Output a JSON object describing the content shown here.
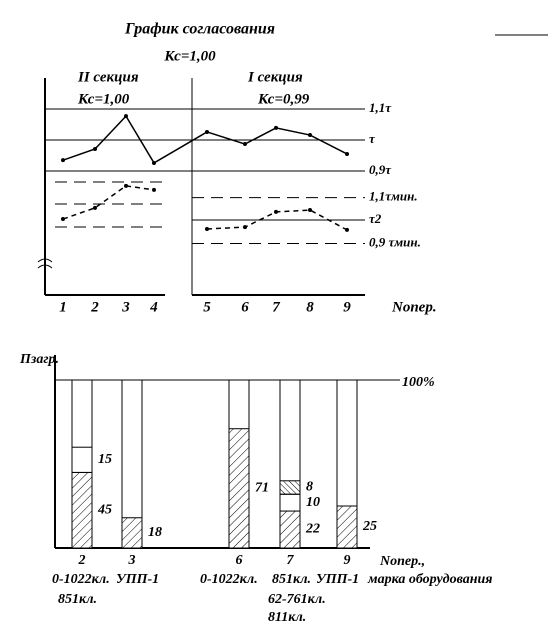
{
  "chart_data": [
    {
      "type": "line",
      "title": "График согласования",
      "subtitle": "Кс=1,00",
      "sections": [
        {
          "name": "II секция",
          "kc": "Кс=1,00"
        },
        {
          "name": "I секция",
          "kc": "Кс=0,99"
        }
      ],
      "categories": [
        "1",
        "2",
        "3",
        "4",
        "5",
        "6",
        "7",
        "8",
        "9"
      ],
      "x_label": "Nопер.",
      "series": [
        {
          "style": "solid",
          "color": "#000000",
          "values": [
            0.935,
            0.971,
            1.077,
            0.926,
            1.026,
            0.987,
            1.039,
            1.016,
            0.955
          ]
        },
        {
          "style": "dashed",
          "color": "#000000",
          "values": [
            0.745,
            0.781,
            0.852,
            0.839,
            0.713,
            0.719,
            0.768,
            0.774,
            0.71
          ]
        }
      ],
      "ylim": [
        0.5,
        1.2
      ],
      "yticks": [
        {
          "value": 1.1,
          "label": "1,1τ"
        },
        {
          "value": 1,
          "label": "τ"
        },
        {
          "value": 0.9,
          "label": "0,9τ"
        },
        {
          "value": 0.814,
          "label": "1,1τмин."
        },
        {
          "value": 0.742,
          "label": "τ2"
        },
        {
          "value": 0.666,
          "label": "0,9 τмин."
        }
      ]
    },
    {
      "type": "bar",
      "stacked": true,
      "y_label": "Пзагр.",
      "categories": [
        "2",
        "3",
        "6",
        "7",
        "9"
      ],
      "x_label_lines": [
        "Nопер.,",
        "марка оборудования"
      ],
      "equipment_labels": [
        "0-1022кл.",
        "УПП-1",
        "851кл.",
        "0-1022кл.",
        "851кл.",
        "УПП-1",
        "62-761кл.",
        "811кл."
      ],
      "series": [
        {
          "color": "#000000",
          "values": [
            45,
            18,
            71,
            22,
            25
          ]
        },
        {
          "color": "#000000",
          "values": [
            15,
            null,
            null,
            10,
            null
          ]
        },
        {
          "color": "#000000",
          "values": [
            null,
            null,
            null,
            8,
            null
          ]
        }
      ],
      "ylim": [
        0,
        100
      ],
      "yticks": [
        {
          "value": 100,
          "label": "100%"
        }
      ]
    }
  ]
}
